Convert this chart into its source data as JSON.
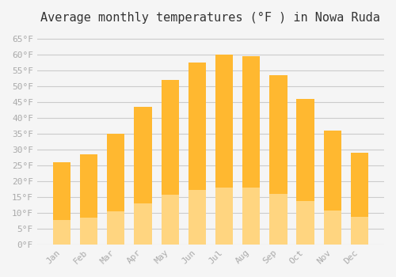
{
  "title": "Average monthly temperatures (°F ) in Nowa Ruda",
  "months": [
    "Jan",
    "Feb",
    "Mar",
    "Apr",
    "May",
    "Jun",
    "Jul",
    "Aug",
    "Sep",
    "Oct",
    "Nov",
    "Dec"
  ],
  "values": [
    26,
    28.5,
    35,
    43.5,
    52,
    57.5,
    60,
    59.5,
    53.5,
    46,
    36,
    29
  ],
  "bar_color_top": "#FFB830",
  "bar_color_bottom": "#FFD580",
  "background_color": "#f5f5f5",
  "grid_color": "#cccccc",
  "ylim": [
    0,
    67
  ],
  "yticks": [
    0,
    5,
    10,
    15,
    20,
    25,
    30,
    35,
    40,
    45,
    50,
    55,
    60,
    65
  ],
  "tick_label_color": "#aaaaaa",
  "title_color": "#333333",
  "title_fontsize": 11,
  "font_family": "monospace"
}
